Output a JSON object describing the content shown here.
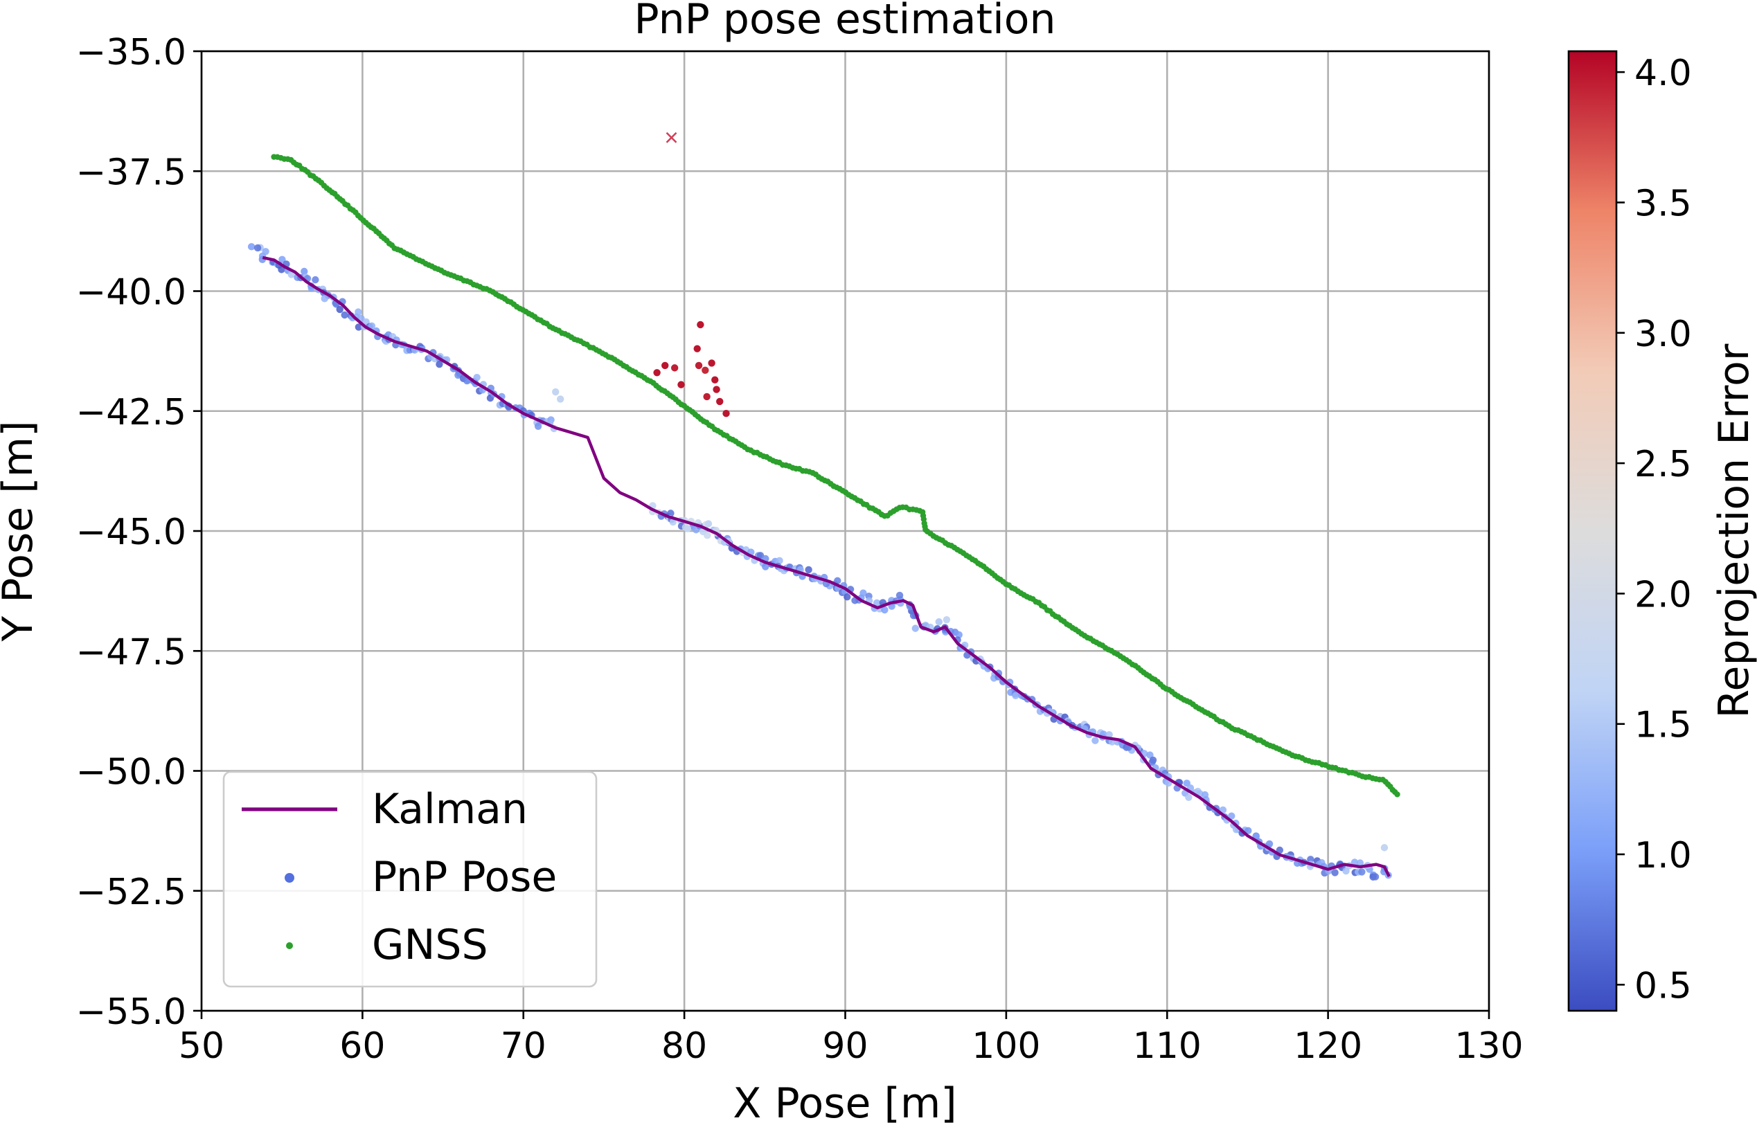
{
  "chart_data": {
    "type": "scatter",
    "title": "PnP pose estimation",
    "xlabel": "X Pose [m]",
    "ylabel": "Y Pose [m]",
    "xlim": [
      50,
      130
    ],
    "ylim": [
      -55,
      -35
    ],
    "grid": true,
    "xticks": [
      50,
      60,
      70,
      80,
      90,
      100,
      110,
      120,
      130
    ],
    "xtick_labels": [
      "50",
      "60",
      "70",
      "80",
      "90",
      "100",
      "110",
      "120",
      "130"
    ],
    "yticks": [
      -35,
      -37.5,
      -40,
      -42.5,
      -45,
      -47.5,
      -50,
      -52.5,
      -55
    ],
    "ytick_labels": [
      "−35.0",
      "−37.5",
      "−40.0",
      "−42.5",
      "−45.0",
      "−47.5",
      "−50.0",
      "−52.5",
      "−55.0"
    ],
    "colorbar": {
      "label": "Reprojection Error",
      "range": [
        0.4,
        4.08
      ],
      "ticks": [
        0.5,
        1.0,
        1.5,
        2.0,
        2.5,
        3.0,
        3.5,
        4.0
      ],
      "tick_labels": [
        "0.5",
        "1.0",
        "1.5",
        "2.0",
        "2.5",
        "3.0",
        "3.5",
        "4.0"
      ],
      "colormap": "coolwarm",
      "stops": [
        "#3b4cc0",
        "#7b9ff9",
        "#c0d4f5",
        "#dddcdc",
        "#f2cbb7",
        "#ee8468",
        "#b40426"
      ]
    },
    "legend": {
      "position": "lower-left",
      "entries": [
        {
          "label": "Kalman",
          "marker": "line",
          "color": "#800080"
        },
        {
          "label": "PnP Pose",
          "marker": "dot",
          "color": "#5470de"
        },
        {
          "label": "GNSS",
          "marker": "dot-small",
          "color": "#2ca02c"
        }
      ]
    },
    "series": [
      {
        "name": "GNSS",
        "kind": "points",
        "color": "#2ca02c",
        "path": [
          [
            54.5,
            -37.2
          ],
          [
            55.5,
            -37.25
          ],
          [
            56.5,
            -37.5
          ],
          [
            58,
            -37.9
          ],
          [
            60,
            -38.5
          ],
          [
            62,
            -39.1
          ],
          [
            65,
            -39.6
          ],
          [
            68,
            -40.0
          ],
          [
            70,
            -40.4
          ],
          [
            72,
            -40.8
          ],
          [
            75,
            -41.3
          ],
          [
            78,
            -41.9
          ],
          [
            80,
            -42.4
          ],
          [
            82,
            -42.9
          ],
          [
            84,
            -43.3
          ],
          [
            86,
            -43.6
          ],
          [
            88,
            -43.8
          ],
          [
            90,
            -44.2
          ],
          [
            92.5,
            -44.7
          ],
          [
            93.5,
            -44.5
          ],
          [
            94.8,
            -44.6
          ],
          [
            95,
            -45.0
          ],
          [
            96,
            -45.2
          ],
          [
            98,
            -45.6
          ],
          [
            100,
            -46.1
          ],
          [
            102,
            -46.5
          ],
          [
            104,
            -47.0
          ],
          [
            106,
            -47.4
          ],
          [
            108,
            -47.8
          ],
          [
            110,
            -48.3
          ],
          [
            112,
            -48.7
          ],
          [
            114,
            -49.1
          ],
          [
            116,
            -49.4
          ],
          [
            118,
            -49.7
          ],
          [
            120,
            -49.9
          ],
          [
            122,
            -50.1
          ],
          [
            123.5,
            -50.2
          ],
          [
            124.3,
            -50.5
          ]
        ],
        "count": 380
      },
      {
        "name": "Kalman",
        "kind": "line",
        "color": "#800080",
        "points": [
          [
            53.8,
            -39.3
          ],
          [
            54.5,
            -39.35
          ],
          [
            55.2,
            -39.5
          ],
          [
            55.8,
            -39.6
          ],
          [
            56.5,
            -39.8
          ],
          [
            57.2,
            -39.95
          ],
          [
            58,
            -40.1
          ],
          [
            58.8,
            -40.3
          ],
          [
            59.5,
            -40.55
          ],
          [
            60.2,
            -40.75
          ],
          [
            61,
            -40.9
          ],
          [
            62,
            -41.05
          ],
          [
            63,
            -41.15
          ],
          [
            64,
            -41.25
          ],
          [
            65,
            -41.45
          ],
          [
            66,
            -41.65
          ],
          [
            67,
            -41.9
          ],
          [
            68,
            -42.1
          ],
          [
            69,
            -42.35
          ],
          [
            70,
            -42.55
          ],
          [
            71,
            -42.7
          ],
          [
            72,
            -42.85
          ],
          [
            73,
            -42.95
          ],
          [
            74,
            -43.05
          ],
          [
            75,
            -43.9
          ],
          [
            76,
            -44.2
          ],
          [
            77,
            -44.35
          ],
          [
            78,
            -44.55
          ],
          [
            79,
            -44.7
          ],
          [
            80,
            -44.8
          ],
          [
            81,
            -44.9
          ],
          [
            82,
            -45.05
          ],
          [
            83,
            -45.3
          ],
          [
            84,
            -45.5
          ],
          [
            85,
            -45.65
          ],
          [
            86,
            -45.75
          ],
          [
            87,
            -45.85
          ],
          [
            88,
            -45.95
          ],
          [
            89,
            -46.05
          ],
          [
            90,
            -46.2
          ],
          [
            91,
            -46.45
          ],
          [
            92,
            -46.6
          ],
          [
            92.8,
            -46.5
          ],
          [
            93.6,
            -46.45
          ],
          [
            94.2,
            -46.55
          ],
          [
            94.7,
            -47.0
          ],
          [
            95.5,
            -47.1
          ],
          [
            96.2,
            -47.0
          ],
          [
            97,
            -47.35
          ],
          [
            98,
            -47.6
          ],
          [
            99,
            -47.85
          ],
          [
            100,
            -48.15
          ],
          [
            101,
            -48.4
          ],
          [
            102,
            -48.65
          ],
          [
            103,
            -48.85
          ],
          [
            104,
            -49.05
          ],
          [
            105,
            -49.2
          ],
          [
            106,
            -49.3
          ],
          [
            107,
            -49.35
          ],
          [
            108,
            -49.5
          ],
          [
            109,
            -49.95
          ],
          [
            110,
            -50.15
          ],
          [
            111,
            -50.35
          ],
          [
            112,
            -50.55
          ],
          [
            113,
            -50.8
          ],
          [
            114,
            -51.05
          ],
          [
            115,
            -51.35
          ],
          [
            116,
            -51.55
          ],
          [
            117,
            -51.75
          ],
          [
            118,
            -51.85
          ],
          [
            119,
            -51.95
          ],
          [
            120,
            -52.05
          ],
          [
            121,
            -51.95
          ],
          [
            122,
            -52.0
          ],
          [
            123,
            -51.95
          ],
          [
            123.5,
            -52.0
          ],
          [
            123.8,
            -52.2
          ]
        ]
      },
      {
        "name": "PnP Pose",
        "kind": "points",
        "colored_by": "reprojection_error",
        "path": [
          [
            53.3,
            -39.15
          ],
          [
            55,
            -39.4
          ],
          [
            57,
            -39.9
          ],
          [
            59,
            -40.4
          ],
          [
            61,
            -40.9
          ],
          [
            63,
            -41.15
          ],
          [
            65,
            -41.45
          ],
          [
            67,
            -41.9
          ],
          [
            69,
            -42.35
          ],
          [
            71,
            -42.7
          ],
          [
            72,
            -42.85
          ],
          [
            78,
            -44.55
          ],
          [
            80,
            -44.8
          ],
          [
            82,
            -45.05
          ],
          [
            84,
            -45.5
          ],
          [
            86,
            -45.75
          ],
          [
            88,
            -45.95
          ],
          [
            90,
            -46.2
          ],
          [
            92,
            -46.6
          ],
          [
            93.6,
            -46.45
          ],
          [
            94.7,
            -47.0
          ],
          [
            96.2,
            -47.0
          ],
          [
            98,
            -47.6
          ],
          [
            100,
            -48.15
          ],
          [
            102,
            -48.65
          ],
          [
            104,
            -49.05
          ],
          [
            106,
            -49.3
          ],
          [
            108,
            -49.5
          ],
          [
            110,
            -50.15
          ],
          [
            112,
            -50.55
          ],
          [
            114,
            -51.05
          ],
          [
            116,
            -51.55
          ],
          [
            118,
            -51.85
          ],
          [
            120,
            -52.05
          ],
          [
            122,
            -52.0
          ],
          [
            123.8,
            -52.2
          ]
        ],
        "error_range": [
          0.5,
          1.9
        ],
        "count": 420,
        "outliers": [
          [
            72.0,
            -42.1
          ],
          [
            72.3,
            -42.25
          ],
          [
            96.3,
            -46.85
          ],
          [
            81.5,
            -44.85
          ],
          [
            80.2,
            -44.95
          ],
          [
            123.5,
            -51.6
          ]
        ],
        "high_error_points": [
          {
            "x": 78.3,
            "y": -41.7,
            "error": 4.0
          },
          {
            "x": 78.8,
            "y": -41.55,
            "error": 4.0
          },
          {
            "x": 79.4,
            "y": -41.6,
            "error": 3.95
          },
          {
            "x": 79.8,
            "y": -41.95,
            "error": 4.0
          },
          {
            "x": 80.9,
            "y": -41.55,
            "error": 3.95
          },
          {
            "x": 81.0,
            "y": -40.7,
            "error": 4.0
          },
          {
            "x": 80.8,
            "y": -41.2,
            "error": 4.0
          },
          {
            "x": 81.3,
            "y": -41.65,
            "error": 3.9
          },
          {
            "x": 81.7,
            "y": -41.5,
            "error": 4.0
          },
          {
            "x": 81.9,
            "y": -41.85,
            "error": 4.0
          },
          {
            "x": 82.0,
            "y": -42.05,
            "error": 4.0
          },
          {
            "x": 81.4,
            "y": -42.2,
            "error": 3.95
          },
          {
            "x": 82.2,
            "y": -42.3,
            "error": 4.0
          },
          {
            "x": 82.6,
            "y": -42.55,
            "error": 4.0
          }
        ]
      }
    ],
    "annotations": [
      {
        "type": "x-marker",
        "x": 79.2,
        "y": -36.8,
        "color": "#d0405a"
      }
    ]
  }
}
